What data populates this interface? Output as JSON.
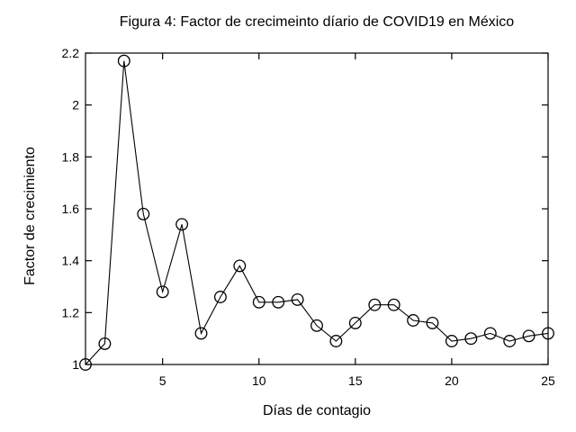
{
  "figure": {
    "title": "Figura 4: Factor de crecimeinto díario de COVID19 en México"
  },
  "chart_data": {
    "type": "line",
    "title": "Figura 4: Factor de crecimeinto díario de COVID19 en México",
    "xlabel": "Días de contagio",
    "ylabel": "Factor de crecimiento",
    "x": [
      1,
      2,
      3,
      4,
      5,
      6,
      7,
      8,
      9,
      10,
      11,
      12,
      13,
      14,
      15,
      16,
      17,
      18,
      19,
      20,
      21,
      22,
      23,
      24,
      25
    ],
    "y": [
      1.0,
      1.08,
      2.17,
      1.58,
      1.28,
      1.54,
      1.12,
      1.26,
      1.38,
      1.24,
      1.24,
      1.25,
      1.15,
      1.09,
      1.16,
      1.23,
      1.23,
      1.17,
      1.16,
      1.09,
      1.1,
      1.12,
      1.09,
      1.11,
      1.12
    ],
    "xlim": [
      1,
      25
    ],
    "ylim": [
      1,
      2.2
    ],
    "xticks": {
      "values": [
        5,
        10,
        15,
        20,
        25
      ],
      "labels": [
        "5",
        "10",
        "15",
        "20",
        "25"
      ]
    },
    "yticks": {
      "values": [
        1,
        1.2,
        1.4,
        1.6,
        1.8,
        2,
        2.2
      ],
      "labels": [
        "1",
        "1.2",
        "1.4",
        "1.6",
        "1.8",
        "2",
        "2.2"
      ]
    },
    "grid": false,
    "legend": "none",
    "marker": "open-circle",
    "marker_size": 6.3,
    "line_color": "#000000",
    "axis_color": "#000000",
    "background_color": "#ffffff"
  }
}
